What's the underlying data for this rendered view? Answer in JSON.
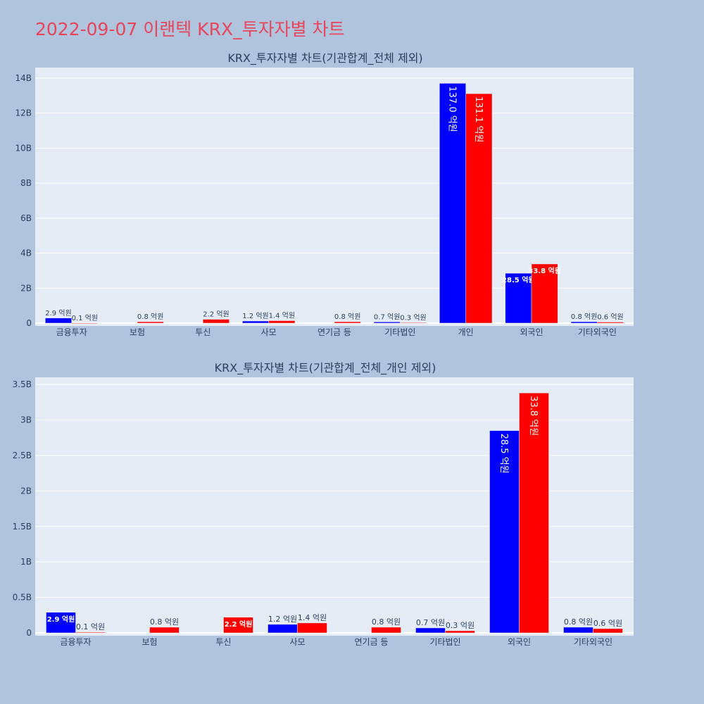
{
  "page": {
    "title": "2022-09-07 이랜텍 KRX_투자자별 차트"
  },
  "colors": {
    "series_a": "#0000ff",
    "series_b": "#ff0000",
    "plot_bg": "#e5ecf6",
    "page_bg": "#b0c4de",
    "grid": "#ffffff",
    "text": "#2a3f5f"
  },
  "chart_data": [
    {
      "type": "bar",
      "title": "KRX_투자자별 차트(기관합계_전체 제외)",
      "categories": [
        "금융투자",
        "보험",
        "투신",
        "사모",
        "연기금 등",
        "기타법인",
        "개인",
        "외국인",
        "기타외국인"
      ],
      "ylim": [
        0,
        14.6
      ],
      "yticks": [
        0,
        2,
        4,
        6,
        8,
        10,
        12,
        14
      ],
      "ytick_labels": [
        "0",
        "2B",
        "4B",
        "6B",
        "8B",
        "10B",
        "12B",
        "14B"
      ],
      "grid": true,
      "series": [
        {
          "values": [
            0.29,
            0,
            0,
            0.12,
            0,
            0.07,
            13.7,
            2.85,
            0.08
          ],
          "labels": [
            "2.9 억원",
            "",
            "",
            "1.2 억원",
            "",
            "0.7 억원",
            "137.0 억원",
            "28.5 억원",
            "0.8 억원"
          ]
        },
        {
          "values": [
            0.01,
            0.08,
            0.22,
            0.14,
            0.08,
            0.03,
            13.11,
            3.38,
            0.06
          ],
          "labels": [
            "0.1 억원",
            "0.8 억원",
            "2.2 억원",
            "1.4 억원",
            "0.8 억원",
            "0.3 억원",
            "131.1 억원",
            "33.8 억원",
            "0.6 억원"
          ]
        }
      ]
    },
    {
      "type": "bar",
      "title": "KRX_투자자별 차트(기관합계_전체_개인 제외)",
      "categories": [
        "금융투자",
        "보험",
        "투신",
        "사모",
        "연기금 등",
        "기타법인",
        "외국인",
        "기타외국인"
      ],
      "ylim": [
        0,
        3.6
      ],
      "yticks": [
        0,
        0.5,
        1,
        1.5,
        2,
        2.5,
        3,
        3.5
      ],
      "ytick_labels": [
        "0",
        "0.5B",
        "1B",
        "1.5B",
        "2B",
        "2.5B",
        "3B",
        "3.5B"
      ],
      "grid": true,
      "series": [
        {
          "values": [
            0.29,
            0,
            0,
            0.12,
            0,
            0.07,
            2.85,
            0.08
          ],
          "labels": [
            "2.9 억원",
            "",
            "",
            "1.2 억원",
            "",
            "0.7 억원",
            "28.5 억원",
            "0.8 억원"
          ]
        },
        {
          "values": [
            0.01,
            0.08,
            0.22,
            0.14,
            0.08,
            0.03,
            3.38,
            0.06
          ],
          "labels": [
            "0.1 억원",
            "0.8 억원",
            "2.2 억원",
            "1.4 억원",
            "0.8 억원",
            "0.3 억원",
            "33.8 억원",
            "0.6 억원"
          ]
        }
      ]
    }
  ]
}
